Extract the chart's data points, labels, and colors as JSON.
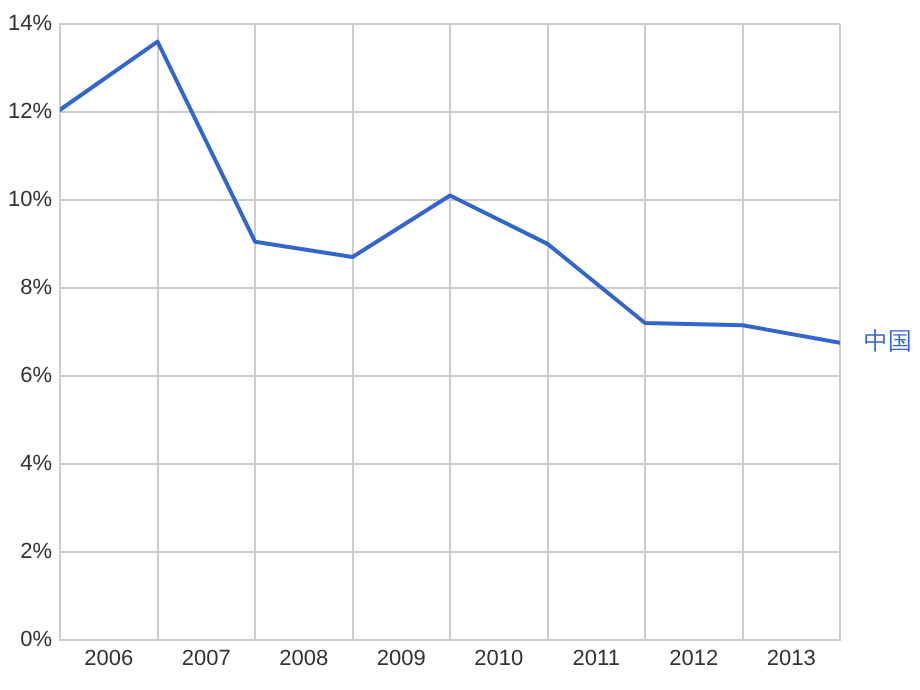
{
  "chart_data": {
    "type": "line",
    "x": [
      2006,
      2007,
      2008,
      2009,
      2010,
      2011,
      2012,
      2013,
      2014
    ],
    "series": [
      {
        "name": "中国",
        "color": "#3366cc",
        "values": [
          12.05,
          13.6,
          9.05,
          8.7,
          10.1,
          9.0,
          7.2,
          7.15,
          6.75
        ]
      }
    ],
    "xlim": [
      2006,
      2014
    ],
    "xticks": [
      {
        "value": 2006,
        "label": null
      },
      {
        "value": 2006.5,
        "label": "2006"
      },
      {
        "value": 2007,
        "label": null
      },
      {
        "value": 2007.5,
        "label": "2007"
      },
      {
        "value": 2008,
        "label": null
      },
      {
        "value": 2008.5,
        "label": "2008"
      },
      {
        "value": 2009,
        "label": null
      },
      {
        "value": 2009.5,
        "label": "2009"
      },
      {
        "value": 2010,
        "label": null
      },
      {
        "value": 2010.5,
        "label": "2010"
      },
      {
        "value": 2011,
        "label": null
      },
      {
        "value": 2011.5,
        "label": "2011"
      },
      {
        "value": 2012,
        "label": null
      },
      {
        "value": 2012.5,
        "label": "2012"
      },
      {
        "value": 2013,
        "label": null
      },
      {
        "value": 2013.5,
        "label": "2013"
      },
      {
        "value": 2014,
        "label": null
      }
    ],
    "ylim": [
      0,
      14
    ],
    "yticks": [
      {
        "value": 0,
        "label": "0%"
      },
      {
        "value": 2,
        "label": "2%"
      },
      {
        "value": 4,
        "label": "4%"
      },
      {
        "value": 6,
        "label": "6%"
      },
      {
        "value": 8,
        "label": "8%"
      },
      {
        "value": 10,
        "label": "10%"
      },
      {
        "value": 12,
        "label": "12%"
      },
      {
        "value": 14,
        "label": "14%"
      }
    ],
    "grid": true,
    "legend": false,
    "marker": "none",
    "line_style": "solid"
  }
}
